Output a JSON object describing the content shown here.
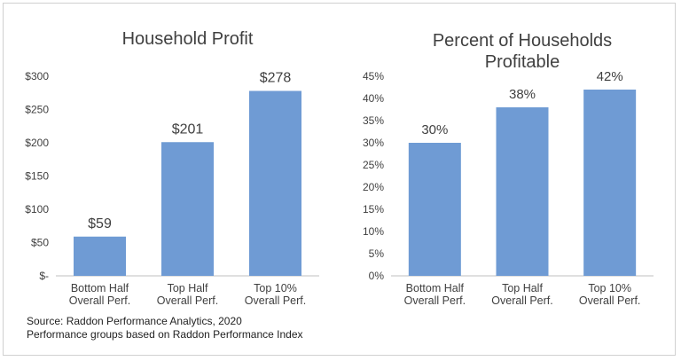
{
  "chart_data": [
    {
      "type": "bar",
      "title": "Household Profit",
      "categories": [
        [
          "Bottom Half",
          "Overall Perf."
        ],
        [
          "Top Half",
          "Overall Perf."
        ],
        [
          "Top 10%",
          "Overall Perf."
        ]
      ],
      "values": [
        59,
        201,
        278
      ],
      "value_labels": [
        "$59",
        "$201",
        "$278"
      ],
      "ylim": [
        0,
        300
      ],
      "yticks": [
        0,
        50,
        100,
        150,
        200,
        250,
        300
      ],
      "ytick_labels": [
        "$-",
        "$50",
        "$100",
        "$150",
        "$200",
        "$250",
        "$300"
      ],
      "xlabel": "",
      "ylabel": "",
      "grid": false,
      "bar_color": "#6f9bd4"
    },
    {
      "type": "bar",
      "title": "Percent of Households Profitable",
      "title_lines": [
        "Percent of Households",
        "Profitable"
      ],
      "categories": [
        [
          "Bottom Half",
          "Overall Perf."
        ],
        [
          "Top Half",
          "Overall Perf."
        ],
        [
          "Top 10%",
          "Overall Perf."
        ]
      ],
      "values": [
        30,
        38,
        42
      ],
      "value_labels": [
        "30%",
        "38%",
        "42%"
      ],
      "ylim": [
        0,
        45
      ],
      "yticks": [
        0,
        5,
        10,
        15,
        20,
        25,
        30,
        35,
        40,
        45
      ],
      "ytick_labels": [
        "0%",
        "5%",
        "10%",
        "15%",
        "20%",
        "25%",
        "30%",
        "35%",
        "40%",
        "45%"
      ],
      "xlabel": "",
      "ylabel": "",
      "grid": false,
      "bar_color": "#6f9bd4"
    }
  ],
  "source": {
    "line1": "Source: Raddon Performance Analytics, 2020",
    "line2": "Performance groups based on Raddon Performance Index"
  }
}
